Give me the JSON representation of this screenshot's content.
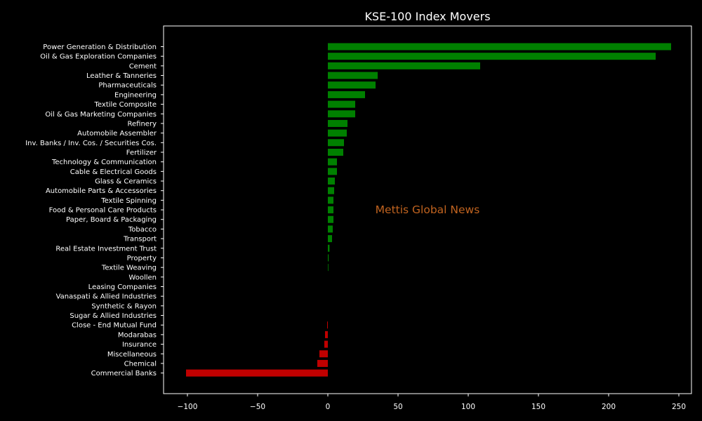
{
  "chart_data": {
    "type": "bar",
    "orientation": "horizontal",
    "title": "KSE-100 Index Movers",
    "xlabel": "",
    "ylabel": "",
    "xlim": [
      -117,
      259
    ],
    "xticks": [
      -100,
      -50,
      0,
      50,
      100,
      150,
      200,
      250
    ],
    "xtick_labels": [
      "−100",
      "−50",
      "0",
      "50",
      "100",
      "150",
      "200",
      "250"
    ],
    "grid": false,
    "categories": [
      "Power Generation & Distribution",
      "Oil & Gas Exploration Companies",
      "Cement",
      "Leather & Tanneries",
      "Pharmaceuticals",
      "Engineering",
      "Textile Composite",
      "Oil & Gas Marketing Companies",
      "Refinery",
      "Automobile Assembler",
      "Inv. Banks / Inv. Cos. / Securities Cos.",
      "Fertilizer",
      "Technology & Communication",
      "Cable & Electrical Goods",
      "Glass & Ceramics",
      "Automobile Parts & Accessories",
      "Textile Spinning",
      "Food & Personal Care Products",
      "Paper, Board & Packaging",
      "Tobacco",
      "Transport",
      "Real Estate Investment Trust",
      "Property",
      "Textile Weaving",
      "Woollen",
      "Leasing Companies",
      "Vanaspati & Allied Industries",
      "Synthetic & Rayon",
      "Sugar & Allied Industries",
      "Close - End Mutual Fund",
      "Modarabas",
      "Insurance",
      "Miscellaneous",
      "Chemical",
      "Commercial Banks"
    ],
    "values": [
      244.5,
      233.5,
      108.5,
      35.5,
      34.0,
      26.5,
      19.5,
      19.5,
      14.0,
      13.5,
      11.5,
      11.0,
      6.5,
      6.5,
      5.0,
      4.5,
      4.0,
      4.0,
      4.0,
      3.5,
      3.0,
      1.2,
      0.6,
      0.4,
      0,
      0,
      0,
      0,
      0,
      -0.5,
      -2.0,
      -2.5,
      -6.0,
      -7.5,
      -101.0
    ],
    "colors": {
      "positive": "#008000",
      "negative": "#c00000"
    },
    "watermark": {
      "text": "Mettis Global News",
      "color": "#c0631f"
    },
    "background": "#000000",
    "foreground": "#ffffff"
  }
}
